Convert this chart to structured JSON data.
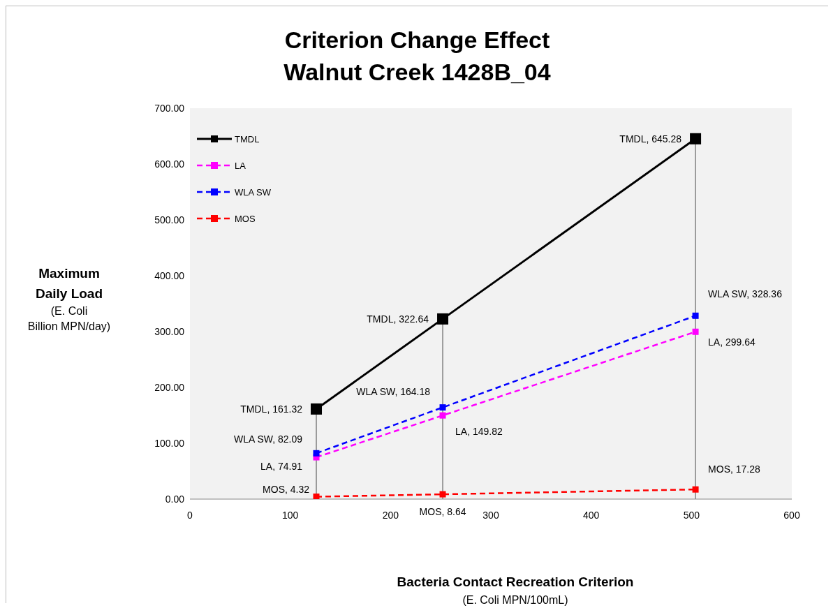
{
  "chart_data": {
    "type": "line",
    "title": "Criterion Change Effect\nWalnut Creek 1428B_04",
    "xlabel": "Bacteria Contact Recreation Criterion\n(E. Coli MPN/100mL)",
    "ylabel": "Maximum\nDaily Load\n(E. Coli\nBillion MPN/day)",
    "x": [
      126,
      252,
      504
    ],
    "series": [
      {
        "name": "TMDL",
        "color": "#000000",
        "line_style": "solid",
        "values": [
          161.32,
          322.64,
          645.28
        ],
        "value_labels": [
          "TMDL, 161.32",
          "TMDL, 322.64",
          "TMDL, 645.28"
        ]
      },
      {
        "name": "LA",
        "color": "#ff00ff",
        "line_style": "dashed",
        "values": [
          74.91,
          149.82,
          299.64
        ],
        "value_labels": [
          "LA, 74.91",
          "LA, 149.82",
          "LA, 299.64"
        ]
      },
      {
        "name": "WLA SW",
        "color": "#0000ff",
        "line_style": "dashed",
        "values": [
          82.09,
          164.18,
          328.36
        ],
        "value_labels": [
          "WLA SW, 82.09",
          "WLA SW, 164.18",
          "WLA SW, 328.36"
        ]
      },
      {
        "name": "MOS",
        "color": "#ff0000",
        "line_style": "dashed",
        "values": [
          4.32,
          8.64,
          17.28
        ],
        "value_labels": [
          "MOS, 4.32",
          "MOS, 8.64",
          "MOS, 17.28"
        ]
      }
    ],
    "ref_lines": [
      {
        "axis": "x",
        "value": 126,
        "color": "#808080"
      },
      {
        "axis": "x",
        "value": 252,
        "color": "#808080"
      },
      {
        "axis": "x",
        "value": 504,
        "color": "#808080"
      }
    ],
    "xlim": [
      0,
      600
    ],
    "xticks": [
      0,
      100,
      200,
      300,
      400,
      500,
      600
    ],
    "ylim": [
      0,
      700
    ],
    "yticks": [
      {
        "value": 0,
        "label": "0.00"
      },
      {
        "value": 100,
        "label": "100.00"
      },
      {
        "value": 200,
        "label": "200.00"
      },
      {
        "value": 300,
        "label": "300.00"
      },
      {
        "value": 400,
        "label": "400.00"
      },
      {
        "value": 500,
        "label": "500.00"
      },
      {
        "value": 600,
        "label": "600.00"
      },
      {
        "value": 700,
        "label": "700.00"
      }
    ],
    "marker": "square",
    "legend": "top left"
  }
}
